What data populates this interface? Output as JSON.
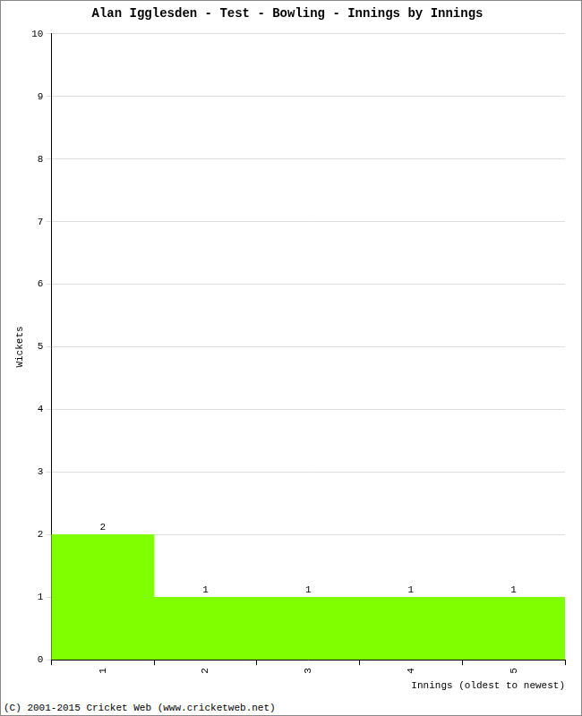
{
  "chart_data": {
    "type": "bar",
    "title": "Alan Igglesden - Test - Bowling - Innings by Innings",
    "x_label": "Innings (oldest to newest)",
    "y_label": "Wickets",
    "categories": [
      "1",
      "2",
      "3",
      "4",
      "5"
    ],
    "values": [
      2,
      1,
      1,
      1,
      1
    ],
    "color": "#80ff00",
    "ylim": [
      0,
      10
    ],
    "yticks": [
      0,
      1,
      2,
      3,
      4,
      5,
      6,
      7,
      8,
      9,
      10
    ],
    "grid": true,
    "data_labels": true,
    "annotation": "(C) 2001-2015 Cricket Web (www.cricketweb.net)"
  }
}
